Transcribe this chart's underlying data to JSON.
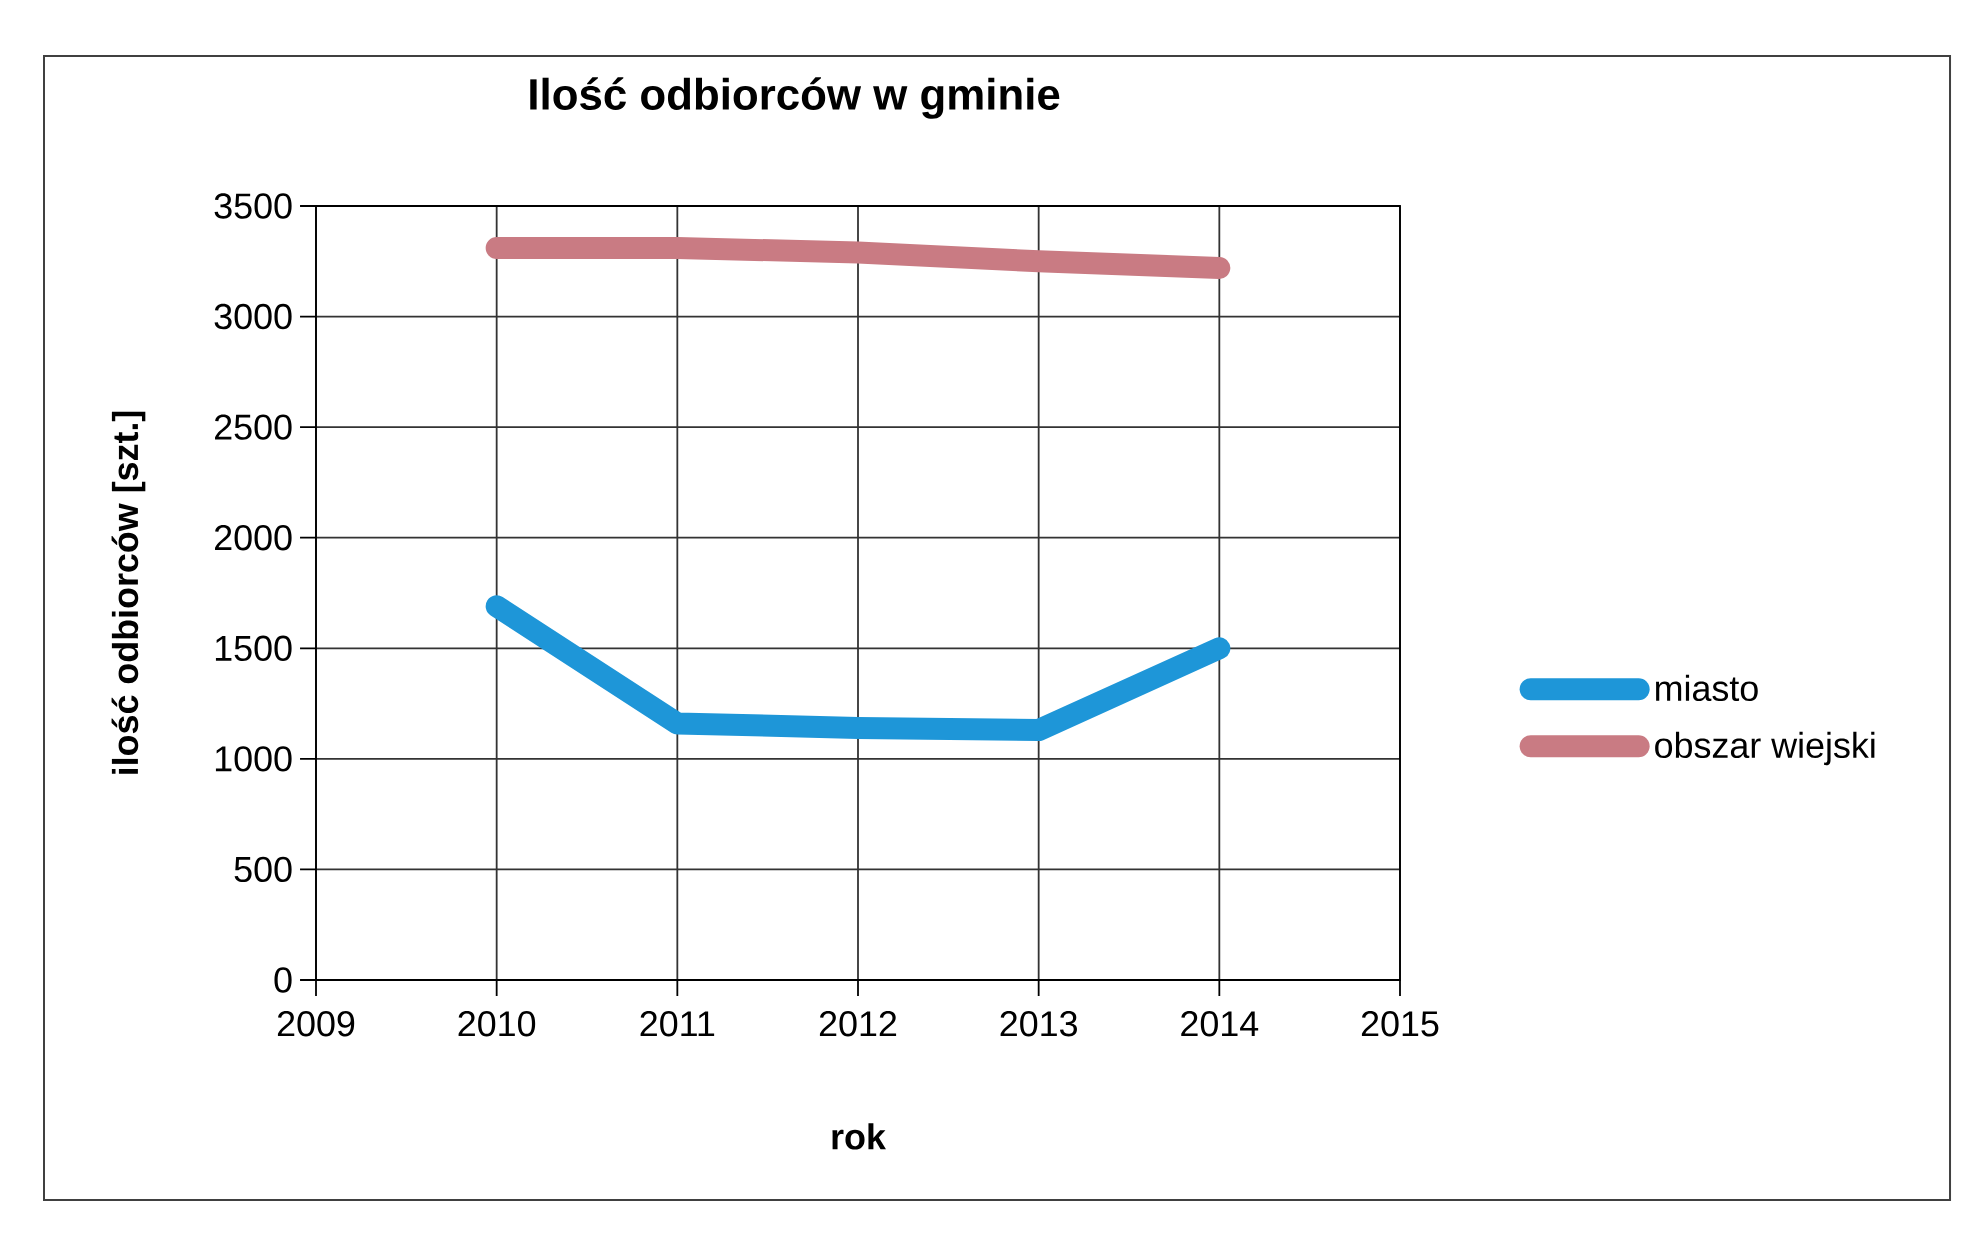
{
  "chart_data": {
    "type": "line",
    "title": "Ilość odbiorców w gminie",
    "xlabel": "rok",
    "ylabel": "ilość odbiorców [szt.]",
    "x": [
      2010,
      2011,
      2012,
      2013,
      2014
    ],
    "series": [
      {
        "name": "miasto",
        "color": "#1e96d8",
        "values": [
          1690,
          1160,
          1140,
          1130,
          1500
        ]
      },
      {
        "name": "obszar wiejski",
        "color": "#c97b83",
        "values": [
          3310,
          3310,
          3290,
          3250,
          3220
        ]
      }
    ],
    "xlim": [
      2009,
      2015
    ],
    "xticks": [
      2009,
      2010,
      2011,
      2012,
      2013,
      2014,
      2015
    ],
    "ylim": [
      0,
      3500
    ],
    "yticks": [
      0,
      500,
      1000,
      1500,
      2000,
      2500,
      3000,
      3500
    ],
    "grid": true,
    "legend": "right",
    "marker": "none",
    "line_style": "solid"
  }
}
